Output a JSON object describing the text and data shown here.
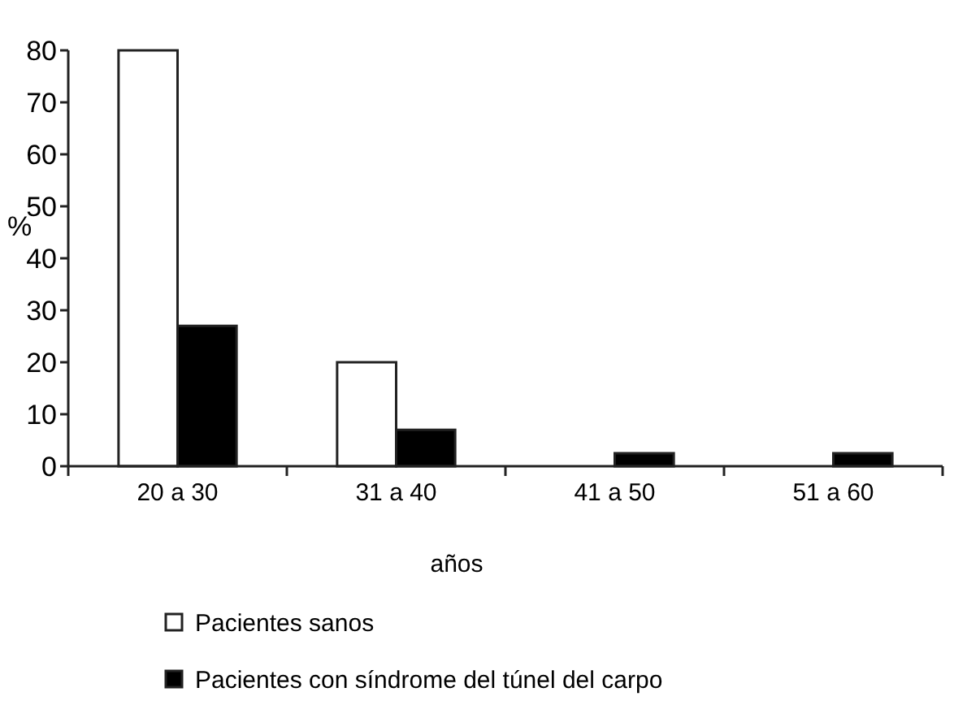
{
  "chart_data": {
    "type": "bar",
    "xlabel": "años",
    "ylabel": "%",
    "categories": [
      "20 a 30",
      "31 a 40",
      "41 a 50",
      "51 a 60"
    ],
    "series": [
      {
        "name": "Pacientes sanos",
        "color": "#ffffff",
        "values": [
          80,
          20,
          0,
          0
        ]
      },
      {
        "name": "Pacientes con síndrome del túnel del carpo",
        "color": "#000000",
        "values": [
          27,
          7,
          2.5,
          2.5
        ]
      }
    ],
    "ylim": [
      0,
      80
    ],
    "yticks": [
      0,
      10,
      20,
      30,
      40,
      50,
      60,
      70,
      80
    ],
    "grid": false,
    "legend": "bottom"
  }
}
